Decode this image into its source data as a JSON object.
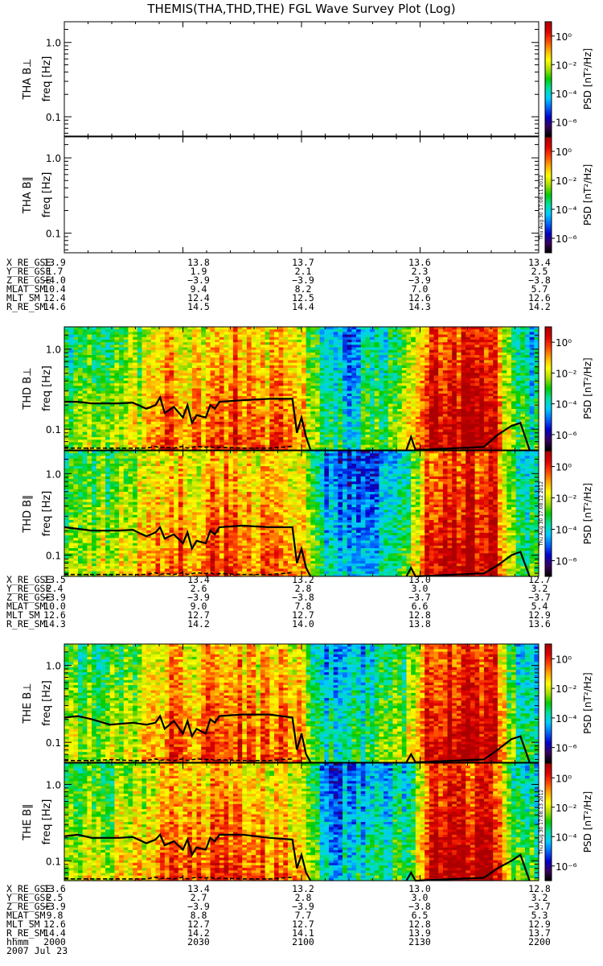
{
  "title": "THEMIS(THA,THD,THE) FGL Wave Survey Plot (Log)",
  "colorbar": {
    "label": "PSD [nT²/Hz]",
    "ticks": [
      "10⁰",
      "10⁻²",
      "10⁻⁴",
      "10⁻⁶"
    ],
    "tick_exponents": [
      0,
      -2,
      -4,
      -6
    ],
    "range_log": [
      -7,
      1
    ],
    "colors": [
      "#000000",
      "#3b0060",
      "#0000cc",
      "#0066ff",
      "#00ccff",
      "#00e0a0",
      "#00cc00",
      "#aadd00",
      "#ffff00",
      "#ffaa00",
      "#ff4400",
      "#dd0000",
      "#aa0000"
    ]
  },
  "stamps": [
    "Thu Aug 30 17:08:11 2012",
    "Thu Aug 30 17:08:12 2012",
    "Thu Aug 30 17:08:13 2012"
  ],
  "chart_data": [
    {
      "type": "heatmap",
      "probe": "THA",
      "panels": [
        {
          "ylabel_probe": "THA B⊥",
          "ylabel_axis": "freq [Hz]",
          "yticks": [
            "1.0",
            "0.1"
          ],
          "ylim": [
            0.055,
            1.9
          ],
          "data": "none"
        },
        {
          "ylabel_probe": "THA B∥",
          "ylabel_axis": "freq [Hz]",
          "yticks": [
            "1.0",
            "0.1"
          ],
          "ylim": [
            0.055,
            1.9
          ],
          "data": "none"
        }
      ],
      "ephemeris": {
        "labels": [
          "X_RE_GSE",
          "Y_RE_GSE",
          "Z_RE_GSE",
          "MLAT_SM",
          "MLT_SM",
          "R_RE_SM"
        ],
        "values": [
          [
            "13.9",
            "13.8",
            "13.7",
            "13.6",
            "13.4"
          ],
          [
            "1.7",
            "1.9",
            "2.1",
            "2.3",
            "2.5"
          ],
          [
            "−4.0",
            "−3.9",
            "−3.9",
            "−3.9",
            "−3.8"
          ],
          [
            "10.4",
            "9.4",
            "8.2",
            "7.0",
            "5.7"
          ],
          [
            "12.4",
            "12.4",
            "12.5",
            "12.6",
            "12.6"
          ],
          [
            "14.6",
            "14.5",
            "14.4",
            "14.3",
            "14.2"
          ]
        ]
      }
    },
    {
      "type": "heatmap",
      "probe": "THD",
      "panels": [
        {
          "ylabel_probe": "THD B⊥",
          "ylabel_axis": "freq [Hz]",
          "yticks": [
            "1.0",
            "0.1"
          ],
          "ylim": [
            0.055,
            1.9
          ],
          "time_profile_log_psd": [
            -3.1,
            -2.8,
            -2.6,
            -2.4,
            -1.5,
            -0.7,
            -1.3,
            -0.6,
            -0.5,
            -1.2,
            -1.0,
            -1.3,
            -3.9,
            -4.3,
            -3.7,
            -3.3,
            -2.4,
            0.3,
            0.5,
            0.4,
            0.2,
            -3.4,
            -3.9
          ],
          "black_curve_hz": [
            [
              0,
              0.22
            ],
            [
              3,
              0.22
            ],
            [
              6,
              0.21
            ],
            [
              12,
              0.21
            ],
            [
              15,
              0.215
            ],
            [
              18,
              0.18
            ],
            [
              20,
              0.2
            ],
            [
              21,
              0.25
            ],
            [
              22,
              0.16
            ],
            [
              24,
              0.19
            ],
            [
              26,
              0.14
            ],
            [
              27,
              0.2
            ],
            [
              28,
              0.12
            ],
            [
              29,
              0.15
            ],
            [
              31,
              0.14
            ],
            [
              32,
              0.2
            ],
            [
              33,
              0.18
            ],
            [
              34,
              0.22
            ],
            [
              39,
              0.23
            ],
            [
              45,
              0.24
            ],
            [
              50,
              0.24
            ],
            [
              51,
              0.09
            ],
            [
              52,
              0.14
            ],
            [
              53,
              0.08
            ],
            [
              54,
              0.055
            ]
          ],
          "late_curve_hz": [
            [
              75,
              0.055
            ],
            [
              76,
              0.08
            ],
            [
              77,
              0.055
            ],
            [
              92,
              0.06
            ],
            [
              95,
              0.085
            ],
            [
              98,
              0.11
            ],
            [
              100,
              0.12
            ],
            [
              102,
              0.055
            ]
          ]
        },
        {
          "ylabel_probe": "THD B∥",
          "ylabel_axis": "freq [Hz]",
          "yticks": [
            "1.0",
            "0.1"
          ],
          "ylim": [
            0.055,
            1.9
          ],
          "time_profile_log_psd": [
            -2.8,
            -2.6,
            -2.4,
            -2.2,
            -1.4,
            -0.8,
            -1.1,
            -0.7,
            -0.6,
            -1.1,
            -1.1,
            -1.4,
            -4.3,
            -4.6,
            -4.4,
            -4.1,
            -3.2,
            0.2,
            0.4,
            0.3,
            0.2,
            -3.1,
            -3.6
          ],
          "black_curve_hz": [
            [
              0,
              0.22
            ],
            [
              3,
              0.21
            ],
            [
              6,
              0.2
            ],
            [
              12,
              0.2
            ],
            [
              15,
              0.205
            ],
            [
              18,
              0.17
            ],
            [
              20,
              0.19
            ],
            [
              21,
              0.22
            ],
            [
              22,
              0.16
            ],
            [
              24,
              0.18
            ],
            [
              26,
              0.14
            ],
            [
              27,
              0.19
            ],
            [
              28,
              0.12
            ],
            [
              29,
              0.15
            ],
            [
              31,
              0.14
            ],
            [
              32,
              0.2
            ],
            [
              33,
              0.18
            ],
            [
              34,
              0.22
            ],
            [
              39,
              0.23
            ],
            [
              45,
              0.22
            ],
            [
              50,
              0.22
            ],
            [
              51,
              0.08
            ],
            [
              52,
              0.12
            ],
            [
              53,
              0.07
            ],
            [
              54,
              0.055
            ]
          ],
          "late_curve_hz": [
            [
              75,
              0.055
            ],
            [
              76,
              0.07
            ],
            [
              77,
              0.055
            ],
            [
              92,
              0.06
            ],
            [
              95,
              0.075
            ],
            [
              98,
              0.1
            ],
            [
              100,
              0.11
            ],
            [
              102,
              0.055
            ]
          ]
        }
      ],
      "ephemeris": {
        "labels": [
          "X_RE_GSE",
          "Y_RE_GSE",
          "Z_RE_GSE",
          "MLAT_SM",
          "MLT_SM",
          "R_RE_SM"
        ],
        "values": [
          [
            "13.5",
            "13.4",
            "13.2",
            "13.0",
            "12.7"
          ],
          [
            "2.4",
            "2.6",
            "2.8",
            "3.0",
            "3.2"
          ],
          [
            "−3.9",
            "−3.9",
            "−3.8",
            "−3.7",
            "−3.7"
          ],
          [
            "10.0",
            "9.0",
            "7.8",
            "6.6",
            "5.4"
          ],
          [
            "12.6",
            "12.7",
            "12.7",
            "12.8",
            "12.9"
          ],
          [
            "14.3",
            "14.2",
            "14.0",
            "13.8",
            "13.6"
          ]
        ]
      }
    },
    {
      "type": "heatmap",
      "probe": "THE",
      "panels": [
        {
          "ylabel_probe": "THE B⊥",
          "ylabel_axis": "freq [Hz]",
          "yticks": [
            "1.0",
            "0.1"
          ],
          "ylim": [
            0.055,
            1.9
          ],
          "time_profile_log_psd": [
            -3.0,
            -2.7,
            -2.5,
            -2.3,
            -1.4,
            -0.7,
            -1.2,
            -0.6,
            -0.5,
            -1.2,
            -1.0,
            -1.3,
            -3.9,
            -4.2,
            -3.7,
            -3.3,
            -2.4,
            0.3,
            0.5,
            0.4,
            0.2,
            -3.4,
            -3.9
          ],
          "black_curve_hz": [
            [
              0,
              0.21
            ],
            [
              3,
              0.22
            ],
            [
              6,
              0.2
            ],
            [
              10,
              0.17
            ],
            [
              15,
              0.18
            ],
            [
              18,
              0.17
            ],
            [
              20,
              0.18
            ],
            [
              21,
              0.22
            ],
            [
              22,
              0.15
            ],
            [
              24,
              0.19
            ],
            [
              26,
              0.13
            ],
            [
              27,
              0.19
            ],
            [
              28,
              0.12
            ],
            [
              29,
              0.15
            ],
            [
              31,
              0.13
            ],
            [
              32,
              0.2
            ],
            [
              33,
              0.18
            ],
            [
              34,
              0.22
            ],
            [
              39,
              0.23
            ],
            [
              45,
              0.23
            ],
            [
              50,
              0.21
            ],
            [
              51,
              0.08
            ],
            [
              52,
              0.13
            ],
            [
              53,
              0.07
            ],
            [
              54,
              0.055
            ]
          ],
          "late_curve_hz": [
            [
              75,
              0.055
            ],
            [
              76,
              0.07
            ],
            [
              77,
              0.055
            ],
            [
              92,
              0.06
            ],
            [
              95,
              0.08
            ],
            [
              98,
              0.11
            ],
            [
              100,
              0.12
            ],
            [
              102,
              0.055
            ]
          ]
        },
        {
          "ylabel_probe": "THE B∥",
          "ylabel_axis": "freq [Hz]",
          "yticks": [
            "1.0",
            "0.1"
          ],
          "ylim": [
            0.055,
            1.9
          ],
          "time_profile_log_psd": [
            -2.8,
            -2.6,
            -2.4,
            -2.2,
            -1.4,
            -0.8,
            -1.1,
            -0.7,
            -0.6,
            -1.1,
            -1.1,
            -1.4,
            -4.3,
            -4.6,
            -4.4,
            -4.1,
            -3.2,
            0.2,
            0.4,
            0.3,
            0.2,
            -3.1,
            -3.6
          ],
          "black_curve_hz": [
            [
              0,
              0.21
            ],
            [
              3,
              0.22
            ],
            [
              6,
              0.2
            ],
            [
              12,
              0.2
            ],
            [
              15,
              0.205
            ],
            [
              18,
              0.17
            ],
            [
              20,
              0.19
            ],
            [
              21,
              0.22
            ],
            [
              22,
              0.16
            ],
            [
              24,
              0.18
            ],
            [
              26,
              0.14
            ],
            [
              27,
              0.19
            ],
            [
              28,
              0.12
            ],
            [
              29,
              0.15
            ],
            [
              31,
              0.14
            ],
            [
              32,
              0.2
            ],
            [
              33,
              0.18
            ],
            [
              34,
              0.22
            ],
            [
              39,
              0.22
            ],
            [
              45,
              0.2
            ],
            [
              50,
              0.19
            ],
            [
              51,
              0.08
            ],
            [
              52,
              0.12
            ],
            [
              53,
              0.07
            ],
            [
              54,
              0.055
            ]
          ],
          "late_curve_hz": [
            [
              75,
              0.055
            ],
            [
              76,
              0.07
            ],
            [
              77,
              0.055
            ],
            [
              92,
              0.06
            ],
            [
              95,
              0.08
            ],
            [
              98,
              0.1
            ],
            [
              100,
              0.12
            ],
            [
              102,
              0.055
            ]
          ]
        }
      ],
      "ephemeris": {
        "labels": [
          "X_RE_GSE",
          "Y_RE_GSE",
          "Z_RE_GSE",
          "MLAT_SM",
          "MLT_SM",
          "R_RE_SM",
          "hhmm"
        ],
        "values": [
          [
            "13.6",
            "13.4",
            "13.2",
            "13.0",
            "12.8"
          ],
          [
            "2.5",
            "2.7",
            "2.8",
            "3.0",
            "3.2"
          ],
          [
            "−3.9",
            "−3.9",
            "−3.9",
            "−3.8",
            "−3.7"
          ],
          [
            "9.8",
            "8.8",
            "7.7",
            "6.5",
            "5.3"
          ],
          [
            "12.6",
            "12.7",
            "12.7",
            "12.8",
            "12.9"
          ],
          [
            "14.4",
            "14.2",
            "14.1",
            "13.9",
            "13.7"
          ],
          [
            "2000",
            "2030",
            "2100",
            "2130",
            "2200"
          ]
        ],
        "date": "2007 Jul 23"
      }
    }
  ]
}
